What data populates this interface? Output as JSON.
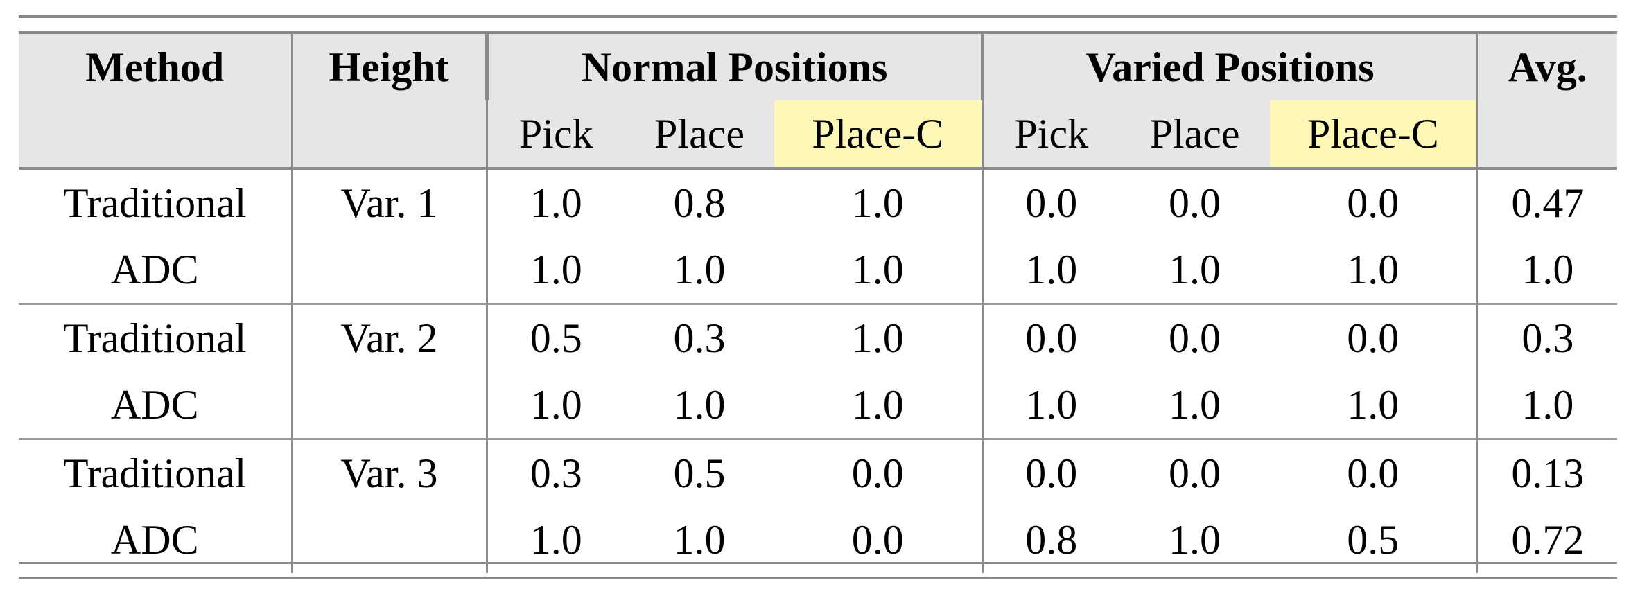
{
  "header": {
    "method": "Method",
    "height": "Height",
    "normal_positions": "Normal Positions",
    "varied_positions": "Varied Positions",
    "avg": "Avg.",
    "sub": [
      "Pick",
      "Place",
      "Place-C",
      "Pick",
      "Place",
      "Place-C"
    ]
  },
  "highlight_color": "#fdf8b8",
  "header_bg": "#e6e6e6",
  "rows": [
    {
      "method": "Traditional",
      "height": "Var. 1",
      "values": [
        "1.0",
        "0.8",
        "1.0",
        "0.0",
        "0.0",
        "0.0"
      ],
      "avg": "0.47"
    },
    {
      "method": "ADC",
      "height": "",
      "values": [
        "1.0",
        "1.0",
        "1.0",
        "1.0",
        "1.0",
        "1.0"
      ],
      "avg": "1.0"
    },
    {
      "method": "Traditional",
      "height": "Var. 2",
      "values": [
        "0.5",
        "0.3",
        "1.0",
        "0.0",
        "0.0",
        "0.0"
      ],
      "avg": "0.3"
    },
    {
      "method": "ADC",
      "height": "",
      "values": [
        "1.0",
        "1.0",
        "1.0",
        "1.0",
        "1.0",
        "1.0"
      ],
      "avg": "1.0"
    },
    {
      "method": "Traditional",
      "height": "Var. 3",
      "values": [
        "0.3",
        "0.5",
        "0.0",
        "0.0",
        "0.0",
        "0.0"
      ],
      "avg": "0.13"
    },
    {
      "method": "ADC",
      "height": "",
      "values": [
        "1.0",
        "1.0",
        "0.0",
        "0.8",
        "1.0",
        "0.5"
      ],
      "avg": "0.72"
    }
  ]
}
